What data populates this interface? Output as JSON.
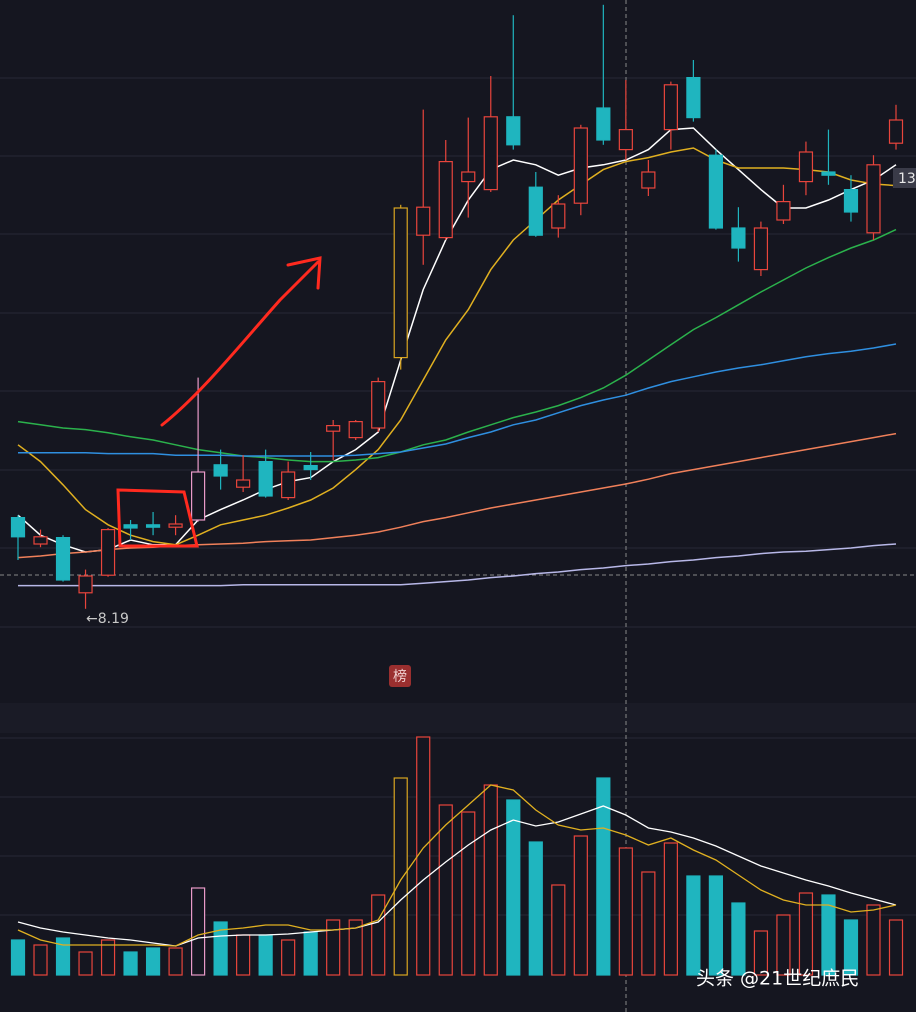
{
  "chart_data": {
    "type": "candlestick",
    "ylim": [
      7.7,
      15.8
    ],
    "open": [
      9.33,
      9.0,
      9.08,
      8.39,
      8.61,
      9.24,
      9.24,
      9.21,
      9.3,
      9.99,
      9.71,
      10.03,
      9.58,
      9.98,
      10.41,
      10.33,
      10.45,
      11.33,
      12.86,
      12.83,
      13.53,
      13.43,
      14.34,
      13.46,
      12.95,
      13.26,
      14.45,
      13.93,
      13.45,
      14.18,
      14.83,
      13.86,
      12.95,
      12.43,
      13.05,
      13.53,
      13.65,
      13.43,
      12.89,
      14.01
    ],
    "close": [
      9.09,
      9.09,
      8.55,
      8.6,
      9.18,
      9.2,
      9.21,
      9.25,
      9.9,
      9.85,
      9.8,
      9.6,
      9.9,
      9.93,
      10.48,
      10.53,
      11.03,
      13.2,
      13.21,
      13.78,
      13.65,
      14.34,
      13.99,
      12.86,
      13.25,
      14.2,
      14.05,
      14.18,
      13.65,
      14.74,
      14.33,
      12.95,
      12.7,
      12.95,
      13.28,
      13.9,
      13.61,
      13.15,
      13.74,
      14.3
    ],
    "high": [
      9.36,
      9.18,
      9.11,
      8.68,
      9.2,
      9.3,
      9.4,
      9.36,
      11.08,
      10.18,
      10.11,
      10.18,
      10.03,
      10.15,
      10.55,
      10.55,
      11.08,
      13.24,
      14.43,
      14.05,
      14.33,
      14.85,
      15.61,
      13.65,
      13.36,
      14.24,
      15.74,
      14.8,
      13.8,
      14.78,
      15.05,
      13.93,
      13.21,
      13.03,
      13.49,
      14.03,
      14.18,
      13.61,
      13.86,
      14.49
    ],
    "low": [
      8.8,
      8.96,
      8.53,
      8.19,
      8.59,
      9.05,
      9.11,
      9.11,
      9.28,
      9.68,
      9.65,
      9.58,
      9.55,
      9.8,
      10.05,
      10.3,
      10.4,
      11.18,
      12.49,
      12.8,
      13.08,
      13.4,
      13.93,
      12.84,
      12.83,
      13.11,
      13.99,
      13.8,
      13.35,
      13.93,
      14.28,
      12.93,
      12.53,
      12.35,
      13.0,
      13.36,
      13.49,
      13.03,
      12.8,
      13.93
    ],
    "up_color": "#e8453c",
    "down_color": "#1fb5bf",
    "highlights": [
      {
        "index": 8,
        "color": "#e89ac8"
      },
      {
        "index": 17,
        "color": "#d9a520"
      }
    ],
    "series": [
      {
        "color": "#ffffff",
        "values": [
          9.36,
          9.11,
          8.99,
          8.9,
          8.93,
          9.05,
          8.99,
          8.99,
          9.3,
          9.43,
          9.55,
          9.68,
          9.78,
          9.83,
          10.03,
          10.18,
          10.4,
          11.3,
          12.18,
          12.8,
          13.3,
          13.68,
          13.8,
          13.74,
          13.61,
          13.7,
          13.74,
          13.8,
          13.93,
          14.18,
          14.2,
          13.93,
          13.68,
          13.43,
          13.2,
          13.2,
          13.3,
          13.43,
          13.55,
          13.74
        ]
      },
      {
        "color": "#e0b020",
        "values": [
          10.24,
          10.03,
          9.74,
          9.43,
          9.24,
          9.11,
          9.03,
          8.99,
          9.11,
          9.24,
          9.3,
          9.36,
          9.45,
          9.55,
          9.7,
          9.93,
          10.18,
          10.55,
          11.05,
          11.55,
          11.93,
          12.43,
          12.8,
          13.05,
          13.3,
          13.49,
          13.68,
          13.78,
          13.83,
          13.9,
          13.95,
          13.8,
          13.7,
          13.7,
          13.7,
          13.68,
          13.65,
          13.55,
          13.5,
          13.48
        ]
      },
      {
        "color": "#2bb24c",
        "values": [
          10.53,
          10.49,
          10.45,
          10.43,
          10.39,
          10.34,
          10.3,
          10.24,
          10.18,
          10.14,
          10.1,
          10.08,
          10.05,
          10.03,
          10.03,
          10.05,
          10.08,
          10.15,
          10.24,
          10.3,
          10.4,
          10.49,
          10.58,
          10.65,
          10.73,
          10.83,
          10.95,
          11.11,
          11.3,
          11.49,
          11.68,
          11.83,
          11.99,
          12.15,
          12.3,
          12.45,
          12.58,
          12.7,
          12.8,
          12.93
        ]
      },
      {
        "color": "#2f8fe0",
        "values": [
          10.14,
          10.14,
          10.14,
          10.14,
          10.13,
          10.13,
          10.13,
          10.11,
          10.11,
          10.11,
          10.1,
          10.1,
          10.1,
          10.1,
          10.1,
          10.11,
          10.13,
          10.15,
          10.2,
          10.25,
          10.33,
          10.4,
          10.49,
          10.55,
          10.64,
          10.73,
          10.8,
          10.86,
          10.95,
          11.03,
          11.09,
          11.15,
          11.2,
          11.24,
          11.29,
          11.34,
          11.38,
          11.41,
          11.45,
          11.5
        ]
      },
      {
        "color": "#f0805a",
        "values": [
          8.83,
          8.85,
          8.88,
          8.9,
          8.93,
          8.95,
          8.96,
          8.98,
          8.99,
          9.0,
          9.01,
          9.03,
          9.04,
          9.05,
          9.08,
          9.11,
          9.15,
          9.21,
          9.28,
          9.33,
          9.39,
          9.45,
          9.5,
          9.55,
          9.6,
          9.65,
          9.7,
          9.75,
          9.81,
          9.88,
          9.93,
          9.98,
          10.03,
          10.08,
          10.13,
          10.18,
          10.23,
          10.28,
          10.33,
          10.38
        ]
      },
      {
        "color": "#b8b8e8",
        "values": [
          8.48,
          8.48,
          8.48,
          8.48,
          8.48,
          8.48,
          8.48,
          8.48,
          8.48,
          8.48,
          8.49,
          8.49,
          8.49,
          8.49,
          8.49,
          8.49,
          8.49,
          8.49,
          8.51,
          8.53,
          8.55,
          8.58,
          8.6,
          8.63,
          8.65,
          8.68,
          8.7,
          8.73,
          8.75,
          8.78,
          8.8,
          8.83,
          8.85,
          8.88,
          8.9,
          8.91,
          8.93,
          8.95,
          8.98,
          9.0
        ]
      }
    ],
    "volume_ylim": [
      0,
      245
    ],
    "volume": [
      35,
      30,
      37,
      23,
      35,
      23,
      27,
      27,
      87,
      53,
      40,
      40,
      35,
      43,
      55,
      55,
      80,
      197,
      238,
      170,
      163,
      190,
      175,
      133,
      90,
      139,
      197,
      127,
      103,
      132,
      99,
      99,
      72,
      44,
      60,
      82,
      80,
      55,
      70,
      55
    ],
    "volume_series": [
      {
        "color": "#ffffff",
        "values": [
          53,
          47,
          43,
          40,
          37,
          35,
          32,
          29,
          37,
          39,
          40,
          40,
          41,
          43,
          45,
          47,
          53,
          75,
          95,
          113,
          130,
          145,
          155,
          149,
          153,
          161,
          169,
          160,
          147,
          143,
          137,
          129,
          119,
          109,
          102,
          95,
          89,
          82,
          76,
          70
        ]
      },
      {
        "color": "#e0b020",
        "values": [
          45,
          35,
          30,
          30,
          30,
          30,
          30,
          29,
          40,
          45,
          47,
          50,
          50,
          45,
          45,
          47,
          55,
          95,
          127,
          150,
          170,
          190,
          185,
          165,
          150,
          145,
          147,
          140,
          130,
          137,
          125,
          115,
          100,
          85,
          75,
          70,
          70,
          63,
          65,
          70
        ]
      }
    ],
    "low_label": "←8.19",
    "price_label": "13",
    "badge": "榜",
    "watermark": "头条 @21世纪庶民"
  }
}
